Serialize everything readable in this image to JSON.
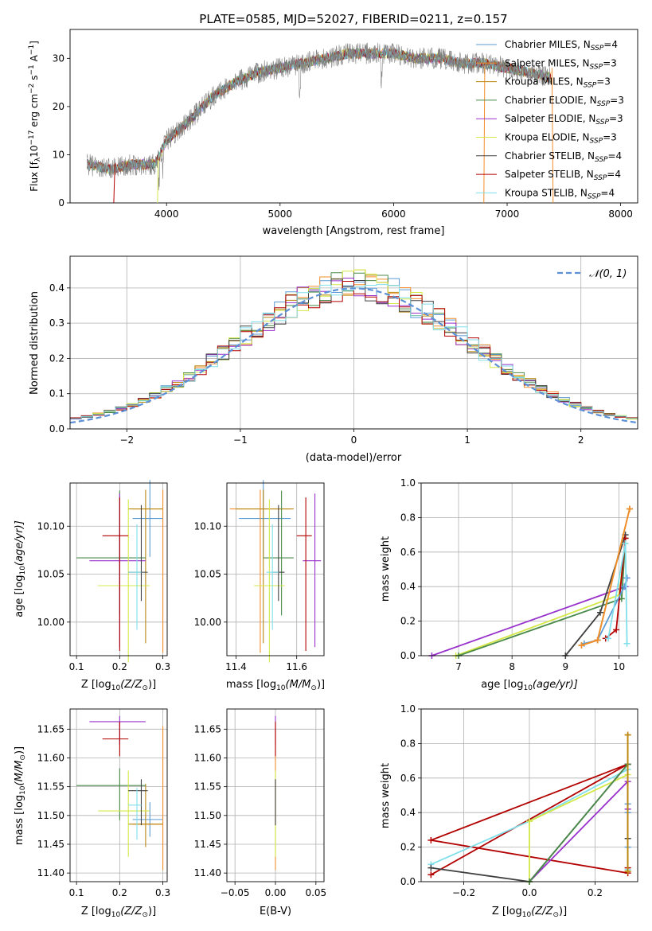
{
  "figure": {
    "title": "PLATE=0585, MJD=52027, FIBERID=0211, z=0.157"
  },
  "colors": {
    "chabrier_miles": "#5b9bd5",
    "salpeter_miles": "#f28e2b",
    "kroupa_miles": "#b8860b",
    "chabrier_elodie": "#4a8a4a",
    "salpeter_elodie": "#9932cc",
    "kroupa_elodie": "#d4e84a",
    "chabrier_stelib": "#404040",
    "salpeter_stelib": "#b30000",
    "kroupa_stelib": "#7fdfea",
    "gaussian": "#5b8fd6",
    "spectrum": "#808080"
  },
  "panels": {
    "spectrum": {
      "xlabel": "wavelength [Angstrom, rest frame]",
      "ylabel": "Flux [f",
      "ylabel_sub": "λ",
      "ylabel_rest": "10",
      "ylabel_exp": "−17",
      "ylabel_units": " erg cm",
      "ylabel_exp2": "−2",
      "ylabel_s": " s",
      "ylabel_exp3": "−1",
      "ylabel_a": " A",
      "ylabel_exp4": "−1",
      "ylabel_end": "]",
      "legend": [
        {
          "label": "Chabrier MILES, N",
          "sub": "SSP",
          "tail": "=4",
          "color": "#5b9bd5"
        },
        {
          "label": "Salpeter MILES, N",
          "sub": "SSP",
          "tail": "=3",
          "color": "#f28e2b"
        },
        {
          "label": "Kroupa MILES, N",
          "sub": "SSP",
          "tail": "=3",
          "color": "#b8860b"
        },
        {
          "label": "Chabrier ELODIE, N",
          "sub": "SSP",
          "tail": "=3",
          "color": "#4a8a4a"
        },
        {
          "label": "Salpeter ELODIE, N",
          "sub": "SSP",
          "tail": "=3",
          "color": "#9932cc"
        },
        {
          "label": "Kroupa ELODIE, N",
          "sub": "SSP",
          "tail": "=3",
          "color": "#d4e84a"
        },
        {
          "label": "Chabrier STELIB, N",
          "sub": "SSP",
          "tail": "=4",
          "color": "#404040"
        },
        {
          "label": "Salpeter STELIB, N",
          "sub": "SSP",
          "tail": "=4",
          "color": "#b30000"
        },
        {
          "label": "Kroupa STELIB, N",
          "sub": "SSP",
          "tail": "=4",
          "color": "#7fdfea"
        }
      ]
    },
    "residuals": {
      "xlabel": "(data-model)/error",
      "ylabel": "Normed distribution",
      "legend_label": "𝒩(0, 1)"
    },
    "age_vs_z": {
      "xlabel": "Z [log",
      "xlabel_sub": "10",
      "xlabel_rest": "(Z/Z",
      "xlabel_sun": "⊙",
      "xlabel_end": ")]",
      "ylabel": "age  [log",
      "ylabel_sub": "10",
      "ylabel_rest": "(age/yr)]"
    },
    "age_vs_mass": {
      "xlabel": "mass [log",
      "xlabel_sub": "10",
      "xlabel_rest": "(M/M",
      "xlabel_sun": "⊙",
      "xlabel_end": ")]"
    },
    "weight_vs_age": {
      "xlabel": "age  [log",
      "xlabel_sub": "10",
      "xlabel_rest": "(age/yr)]",
      "ylabel": "mass weight"
    },
    "mass_vs_z": {
      "xlabel": "Z [log",
      "xlabel_sub": "10",
      "xlabel_rest": "(Z/Z",
      "xlabel_sun": "⊙",
      "xlabel_end": ")]",
      "ylabel": "mass [log",
      "ylabel_sub": "10",
      "ylabel_rest": "(M/M",
      "ylabel_sun": "⊙",
      "ylabel_end": ")]"
    },
    "mass_vs_ebv": {
      "xlabel": "E(B-V)"
    },
    "weight_vs_z": {
      "xlabel": "Z [log",
      "xlabel_sub": "10",
      "xlabel_rest": "(Z/Z",
      "xlabel_sun": "⊙",
      "xlabel_end": ")]",
      "ylabel": "mass weight"
    }
  },
  "chart_data": [
    {
      "id": "spectrum",
      "type": "line",
      "xlim": [
        3150,
        8150
      ],
      "ylim": [
        0,
        36
      ],
      "xticks": [
        4000,
        5000,
        6000,
        7000,
        8000
      ],
      "yticks": [
        0,
        10,
        20,
        30
      ],
      "continuum": {
        "x": [
          3300,
          3500,
          3700,
          3900,
          4000,
          4200,
          4400,
          4600,
          4800,
          5000,
          5200,
          5400,
          5600,
          5800,
          6000,
          6200,
          6400,
          6600,
          6800,
          7000,
          7200,
          7400
        ],
        "y": [
          8,
          7,
          8,
          8,
          13,
          17,
          22,
          25,
          27,
          28,
          29,
          30,
          31,
          31,
          31,
          30,
          30,
          29,
          29,
          28,
          27,
          26
        ]
      },
      "edges": [
        {
          "series": "salpeter_stelib",
          "x": [
            3535,
            3545
          ],
          "y": [
            0,
            8
          ]
        },
        {
          "series": "kroupa_elodie",
          "x": [
            3920,
            3928
          ],
          "y": [
            0,
            9
          ]
        },
        {
          "series": "salpeter_miles",
          "x": [
            6795,
            6803
          ],
          "y": [
            0,
            28
          ]
        },
        {
          "series": "salpeter_miles",
          "x": [
            7395,
            7405
          ],
          "y": [
            28,
            0
          ]
        }
      ],
      "series_names": [
        "Chabrier MILES",
        "Salpeter MILES",
        "Kroupa MILES",
        "Chabrier ELODIE",
        "Salpeter ELODIE",
        "Kroupa ELODIE",
        "Chabrier STELIB",
        "Salpeter STELIB",
        "Kroupa STELIB"
      ]
    },
    {
      "id": "residuals",
      "type": "bar",
      "xlim": [
        -2.5,
        2.5
      ],
      "ylim": [
        0,
        0.49
      ],
      "xticks": [
        -2,
        -1,
        0,
        1,
        2
      ],
      "yticks": [
        0.0,
        0.1,
        0.2,
        0.3,
        0.4
      ],
      "bin_width": 0.1,
      "gaussian": {
        "mu": 0,
        "sigma": 1
      }
    },
    {
      "id": "age_vs_z",
      "type": "scatter",
      "xlim": [
        0.085,
        0.31
      ],
      "ylim": [
        9.965,
        10.145
      ],
      "xticks": [
        0.1,
        0.2,
        0.3
      ],
      "yticks": [
        10.0,
        10.05,
        10.1
      ],
      "points": [
        {
          "series": "chabrier_miles",
          "x": 0.27,
          "y": 10.108,
          "xerr": [
            0.04,
            0.03
          ],
          "yerr": [
            0.04,
            0.04
          ]
        },
        {
          "series": "salpeter_miles",
          "x": 0.3,
          "y": 10.118,
          "xerr": [
            0.07,
            0.0
          ],
          "yerr": [
            0.15,
            0.02
          ]
        },
        {
          "series": "kroupa_miles",
          "x": 0.26,
          "y": 10.118,
          "xerr": [
            0.04,
            0.04
          ],
          "yerr": [
            0.14,
            0.02
          ]
        },
        {
          "series": "chabrier_elodie",
          "x": 0.2,
          "y": 10.067,
          "xerr": [
            0.1,
            0.06
          ],
          "yerr": [
            0.06,
            0.07
          ]
        },
        {
          "series": "salpeter_elodie",
          "x": 0.2,
          "y": 10.064,
          "xerr": [
            0.07,
            0.06
          ],
          "yerr": [
            0.09,
            0.07
          ]
        },
        {
          "series": "kroupa_elodie",
          "x": 0.22,
          "y": 10.038,
          "xerr": [
            0.07,
            0.05
          ],
          "yerr": [
            0.08,
            0.09
          ]
        },
        {
          "series": "chabrier_stelib",
          "x": 0.25,
          "y": 10.052,
          "xerr": [
            0.03,
            0.015
          ],
          "yerr": [
            0.03,
            0.07
          ]
        },
        {
          "series": "salpeter_stelib",
          "x": 0.2,
          "y": 10.09,
          "xerr": [
            0.04,
            0.02
          ],
          "yerr": [
            0.12,
            0.04
          ]
        },
        {
          "series": "kroupa_stelib",
          "x": 0.24,
          "y": 10.052,
          "xerr": [
            0.02,
            0.01
          ],
          "yerr": [
            0.06,
            0.05
          ]
        }
      ]
    },
    {
      "id": "age_vs_mass",
      "type": "scatter",
      "xlim": [
        11.37,
        11.69
      ],
      "ylim": [
        9.965,
        10.145
      ],
      "xticks": [
        11.4,
        11.6
      ],
      "yticks": [
        10.0,
        10.05,
        10.1
      ],
      "points": [
        {
          "series": "chabrier_miles",
          "x": 11.49,
          "y": 10.108,
          "xerr": [
            0.08,
            0.09
          ],
          "yerr": [
            0.04,
            0.04
          ]
        },
        {
          "series": "salpeter_miles",
          "x": 11.48,
          "y": 10.118,
          "xerr": [
            0.1,
            0.1
          ],
          "yerr": [
            0.15,
            0.02
          ]
        },
        {
          "series": "kroupa_miles",
          "x": 11.49,
          "y": 10.118,
          "xerr": [
            0.09,
            0.1
          ],
          "yerr": [
            0.14,
            0.02
          ]
        },
        {
          "series": "chabrier_elodie",
          "x": 11.55,
          "y": 10.067,
          "xerr": [
            0.06,
            0.04
          ],
          "yerr": [
            0.06,
            0.07
          ]
        },
        {
          "series": "salpeter_elodie",
          "x": 11.66,
          "y": 10.064,
          "xerr": [
            0.04,
            0.02
          ],
          "yerr": [
            0.09,
            0.07
          ]
        },
        {
          "series": "kroupa_elodie",
          "x": 11.51,
          "y": 10.038,
          "xerr": [
            0.05,
            0.05
          ],
          "yerr": [
            0.08,
            0.09
          ]
        },
        {
          "series": "chabrier_stelib",
          "x": 11.54,
          "y": 10.052,
          "xerr": [
            0.02,
            0.02
          ],
          "yerr": [
            0.03,
            0.07
          ]
        },
        {
          "series": "salpeter_stelib",
          "x": 11.63,
          "y": 10.09,
          "xerr": [
            0.03,
            0.02
          ],
          "yerr": [
            0.12,
            0.04
          ]
        },
        {
          "series": "kroupa_stelib",
          "x": 11.52,
          "y": 10.052,
          "xerr": [
            0.02,
            0.02
          ],
          "yerr": [
            0.06,
            0.05
          ]
        }
      ]
    },
    {
      "id": "weight_vs_age",
      "type": "line",
      "xlim": [
        6.3,
        10.35
      ],
      "ylim": [
        0,
        1.0
      ],
      "xticks": [
        7,
        8,
        9,
        10
      ],
      "yticks": [
        0.0,
        0.2,
        0.4,
        0.6,
        0.8,
        1.0
      ],
      "series": [
        {
          "name": "salpeter_elodie",
          "x": [
            6.5,
            10.12,
            10.15
          ],
          "y": [
            0.0,
            0.4,
            0.45
          ]
        },
        {
          "name": "kroupa_elodie",
          "x": [
            6.95,
            10.0,
            10.12
          ],
          "y": [
            0.0,
            0.35,
            0.65
          ]
        },
        {
          "name": "chabrier_elodie",
          "x": [
            7.0,
            10.05,
            10.12
          ],
          "y": [
            0.0,
            0.33,
            0.68
          ]
        },
        {
          "name": "chabrier_stelib",
          "x": [
            9.0,
            9.65,
            10.12
          ],
          "y": [
            0.0,
            0.25,
            0.7
          ]
        },
        {
          "name": "salpeter_stelib",
          "x": [
            9.75,
            9.95,
            10.12
          ],
          "y": [
            0.1,
            0.15,
            0.68
          ]
        },
        {
          "name": "chabrier_miles",
          "x": [
            9.35,
            9.6,
            10.1,
            10.15
          ],
          "y": [
            0.07,
            0.09,
            0.4,
            0.45
          ]
        },
        {
          "name": "kroupa_miles",
          "x": [
            9.3,
            9.6,
            10.2
          ],
          "y": [
            0.06,
            0.09,
            0.85
          ]
        },
        {
          "name": "salpeter_miles",
          "x": [
            9.3,
            9.6,
            10.2
          ],
          "y": [
            0.06,
            0.09,
            0.85
          ]
        },
        {
          "name": "kroupa_stelib",
          "x": [
            9.8,
            10.12,
            10.15
          ],
          "y": [
            0.1,
            0.65,
            0.07
          ]
        }
      ]
    },
    {
      "id": "mass_vs_z",
      "type": "scatter",
      "xlim": [
        0.085,
        0.31
      ],
      "ylim": [
        11.385,
        11.685
      ],
      "xticks": [
        0.1,
        0.2,
        0.3
      ],
      "yticks": [
        11.4,
        11.45,
        11.5,
        11.55,
        11.6,
        11.65
      ],
      "points": [
        {
          "series": "chabrier_miles",
          "x": 0.27,
          "y": 11.493,
          "xerr": [
            0.04,
            0.03
          ],
          "yerr": [
            0.03,
            0.03
          ]
        },
        {
          "series": "salpeter_miles",
          "x": 0.3,
          "y": 11.485,
          "xerr": [
            0.07,
            0.0
          ],
          "yerr": [
            0.08,
            0.17
          ]
        },
        {
          "series": "kroupa_miles",
          "x": 0.26,
          "y": 11.485,
          "xerr": [
            0.04,
            0.04
          ],
          "yerr": [
            0.04,
            0.07
          ]
        },
        {
          "series": "chabrier_elodie",
          "x": 0.2,
          "y": 11.552,
          "xerr": [
            0.1,
            0.06
          ],
          "yerr": [
            0.06,
            0.03
          ]
        },
        {
          "series": "salpeter_elodie",
          "x": 0.2,
          "y": 11.663,
          "xerr": [
            0.07,
            0.06
          ],
          "yerr": [
            0.04,
            0.01
          ]
        },
        {
          "series": "kroupa_elodie",
          "x": 0.22,
          "y": 11.508,
          "xerr": [
            0.07,
            0.05
          ],
          "yerr": [
            0.08,
            0.07
          ]
        },
        {
          "series": "chabrier_stelib",
          "x": 0.25,
          "y": 11.543,
          "xerr": [
            0.03,
            0.015
          ],
          "yerr": [
            0.06,
            0.02
          ]
        },
        {
          "series": "salpeter_stelib",
          "x": 0.2,
          "y": 11.633,
          "xerr": [
            0.04,
            0.02
          ],
          "yerr": [
            0.03,
            0.03
          ]
        },
        {
          "series": "kroupa_stelib",
          "x": 0.24,
          "y": 11.518,
          "xerr": [
            0.02,
            0.01
          ],
          "yerr": [
            0.06,
            0.03
          ]
        }
      ]
    },
    {
      "id": "mass_vs_ebv",
      "type": "scatter",
      "xlim": [
        -0.06,
        0.06
      ],
      "ylim": [
        11.385,
        11.685
      ],
      "xticks": [
        -0.05,
        0.0,
        0.05
      ],
      "yticks": [
        11.4,
        11.45,
        11.5,
        11.55,
        11.6,
        11.65
      ],
      "points": [
        {
          "series": "salpeter_miles",
          "x": 0.0,
          "y": 11.485,
          "xerr": [
            0,
            0
          ],
          "yerr": [
            0.08,
            0.17
          ]
        },
        {
          "series": "kroupa_elodie",
          "x": 0.0,
          "y": 11.508,
          "xerr": [
            0,
            0
          ],
          "yerr": [
            0.08,
            0.07
          ]
        },
        {
          "series": "salpeter_elodie",
          "x": 0.0,
          "y": 11.663,
          "xerr": [
            0,
            0
          ],
          "yerr": [
            0.04,
            0.01
          ]
        },
        {
          "series": "chabrier_stelib",
          "x": 0.0,
          "y": 11.543,
          "xerr": [
            0,
            0
          ],
          "yerr": [
            0.06,
            0.02
          ]
        },
        {
          "series": "salpeter_stelib",
          "x": 0.0,
          "y": 11.633,
          "xerr": [
            0,
            0
          ],
          "yerr": [
            0.03,
            0.03
          ]
        }
      ]
    },
    {
      "id": "weight_vs_z",
      "type": "line",
      "xlim": [
        -0.33,
        0.33
      ],
      "ylim": [
        0,
        1.0
      ],
      "xticks": [
        -0.2,
        0.0,
        0.2
      ],
      "yticks": [
        0.0,
        0.2,
        0.4,
        0.6,
        0.8,
        1.0
      ],
      "series": [
        {
          "name": "salpeter_stelib",
          "x": [
            -0.3,
            0.3,
            -0.3,
            0.3,
            0.3
          ],
          "y": [
            0.04,
            0.68,
            0.24,
            0.05,
            0.08
          ]
        },
        {
          "name": "kroupa_stelib",
          "x": [
            -0.3,
            0.0,
            0.3,
            0.3
          ],
          "y": [
            0.1,
            0.35,
            0.65,
            0.07
          ]
        },
        {
          "name": "salpeter_elodie",
          "x": [
            0.0,
            0.3,
            0.3
          ],
          "y": [
            0.0,
            0.58,
            0.42
          ]
        },
        {
          "name": "chabrier_stelib",
          "x": [
            -0.3,
            0.0,
            0.3,
            0.3
          ],
          "y": [
            0.08,
            0.0,
            0.68,
            0.25
          ]
        },
        {
          "name": "kroupa_elodie",
          "x": [
            0.0,
            0.0,
            0.3
          ],
          "y": [
            0.0,
            0.35,
            0.62
          ]
        },
        {
          "name": "chabrier_elodie",
          "x": [
            0.0,
            0.3
          ],
          "y": [
            0.0,
            0.68
          ]
        },
        {
          "name": "chabrier_miles",
          "x": [
            0.3,
            0.3,
            0.3
          ],
          "y": [
            0.45,
            0.2,
            0.4
          ]
        },
        {
          "name": "salpeter_miles",
          "x": [
            0.3,
            0.3
          ],
          "y": [
            0.85,
            0.06
          ]
        },
        {
          "name": "kroupa_miles",
          "x": [
            0.3,
            0.3
          ],
          "y": [
            0.85,
            0.06
          ]
        }
      ]
    }
  ]
}
